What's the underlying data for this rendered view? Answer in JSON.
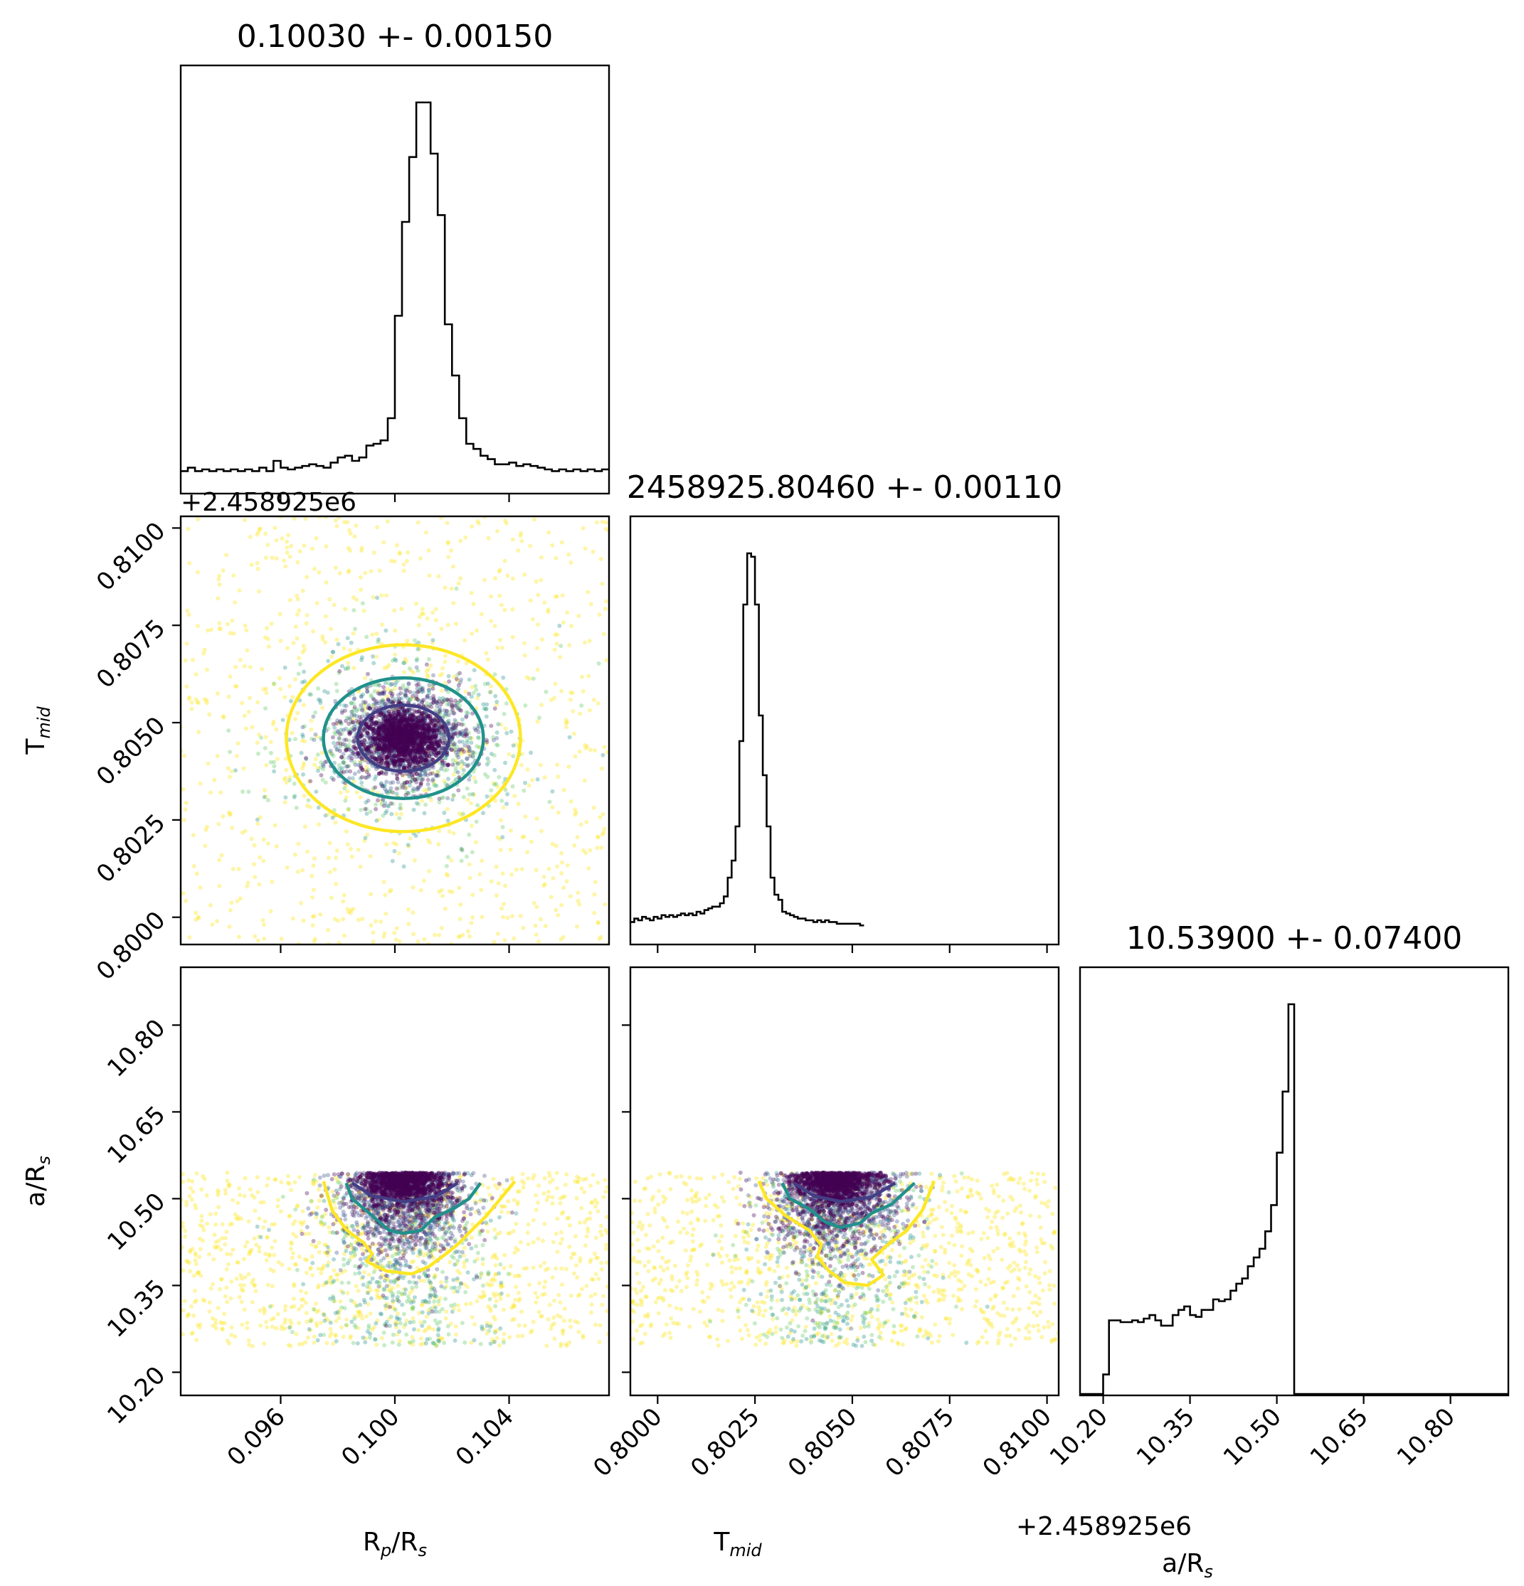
{
  "chart_data": {
    "type": "corner",
    "parameters": [
      {
        "label": "R",
        "label_sub": "p",
        "label_tail": "/R",
        "label_sub2": "s",
        "title": "0.10030 +- 0.00150"
      },
      {
        "label": "T",
        "label_sub": "mid",
        "label_tail": "",
        "label_sub2": "",
        "title": "2458925.80460 +- 0.00110"
      },
      {
        "label": "a/R",
        "label_sub": "s",
        "label_tail": "",
        "label_sub2": "",
        "title": "10.53900 +- 0.07400"
      }
    ],
    "offset_text_tmid": "+2.458925e6",
    "ranges": {
      "rp": [
        0.0925,
        0.1075
      ],
      "tmid": [
        0.7993,
        0.8103
      ],
      "ars": [
        10.16,
        10.9
      ]
    },
    "ticks": {
      "rp": [
        {
          "v": 0.096,
          "label": "0.096"
        },
        {
          "v": 0.1,
          "label": "0.100"
        },
        {
          "v": 0.104,
          "label": "0.104"
        }
      ],
      "tmid": [
        {
          "v": 0.8,
          "label": "0.8000"
        },
        {
          "v": 0.8025,
          "label": "0.8025"
        },
        {
          "v": 0.805,
          "label": "0.8050"
        },
        {
          "v": 0.8075,
          "label": "0.8075"
        },
        {
          "v": 0.81,
          "label": "0.8100"
        }
      ],
      "ars": [
        {
          "v": 10.2,
          "label": "10.20"
        },
        {
          "v": 10.35,
          "label": "10.35"
        },
        {
          "v": 10.5,
          "label": "10.50"
        },
        {
          "v": 10.65,
          "label": "10.65"
        },
        {
          "v": 10.8,
          "label": "10.80"
        }
      ]
    },
    "hist_rp": {
      "start": 0.0925,
      "width": 0.00025,
      "counts": [
        4,
        6,
        4,
        5,
        4,
        5,
        4,
        5,
        4,
        5,
        4,
        6,
        4,
        10,
        6,
        5,
        6,
        7,
        8,
        7,
        6,
        9,
        12,
        13,
        10,
        12,
        19,
        20,
        22,
        35,
        95,
        150,
        188,
        220,
        220,
        190,
        154,
        90,
        60,
        35,
        20,
        17,
        13,
        11,
        8,
        8,
        9,
        7,
        8,
        7,
        6,
        5,
        4,
        5,
        4,
        5,
        4,
        5,
        4,
        5
      ]
    },
    "hist_tmid": {
      "start": 0.7993,
      "width": 0.0001,
      "counts": [
        4,
        6,
        5,
        7,
        6,
        5,
        7,
        6,
        8,
        7,
        8,
        7,
        8,
        9,
        8,
        9,
        8,
        10,
        9,
        11,
        12,
        13,
        13,
        15,
        19,
        30,
        40,
        60,
        110,
        190,
        220,
        218,
        190,
        125,
        90,
        60,
        30,
        20,
        17,
        10,
        9,
        8,
        7,
        6,
        6,
        5,
        5,
        4,
        5,
        4,
        5,
        4,
        4,
        3,
        3,
        3,
        3,
        3,
        3,
        2
      ]
    },
    "hist_ars": {
      "start": 10.16,
      "width": 0.01,
      "counts": [
        0,
        0,
        0,
        0,
        3,
        34,
        34,
        33,
        33,
        34,
        33,
        35,
        37,
        34,
        31,
        31,
        37,
        40,
        42,
        37,
        36,
        40,
        40,
        46,
        45,
        46,
        51,
        55,
        58,
        65,
        70,
        75,
        85,
        100,
        130,
        165,
        215,
        0,
        0,
        0,
        0,
        0,
        0,
        0,
        0,
        0,
        0,
        0,
        0,
        0,
        0,
        0,
        0,
        0,
        0,
        0,
        0,
        0,
        0,
        0,
        0,
        0,
        0,
        0,
        0,
        0,
        0,
        0,
        0,
        0,
        0,
        0,
        0,
        0
      ]
    },
    "contours_2d": {
      "rp_tmid": {
        "center": [
          0.1003,
          0.8046
        ],
        "radii": [
          [
            0.0016,
            0.00085
          ],
          [
            0.0028,
            0.00155
          ],
          [
            0.0041,
            0.0024
          ]
        ]
      },
      "rp_ars": [
        [
          [
            0.0985,
            10.527
          ],
          [
            0.0992,
            10.505
          ],
          [
            0.1003,
            10.495
          ],
          [
            0.1014,
            10.503
          ],
          [
            0.1022,
            10.527
          ]
        ],
        [
          [
            0.0983,
            10.527
          ],
          [
            0.0985,
            10.5
          ],
          [
            0.0991,
            10.475
          ],
          [
            0.0998,
            10.445
          ],
          [
            0.1003,
            10.44
          ],
          [
            0.1009,
            10.445
          ],
          [
            0.1014,
            10.468
          ],
          [
            0.1021,
            10.484
          ],
          [
            0.1026,
            10.5
          ],
          [
            0.103,
            10.527
          ]
        ],
        [
          [
            0.0975,
            10.53
          ],
          [
            0.0978,
            10.48
          ],
          [
            0.0983,
            10.446
          ],
          [
            0.0989,
            10.424
          ],
          [
            0.0992,
            10.405
          ],
          [
            0.099,
            10.392
          ],
          [
            0.0997,
            10.375
          ],
          [
            0.1006,
            10.37
          ],
          [
            0.1012,
            10.383
          ],
          [
            0.1018,
            10.405
          ],
          [
            0.1022,
            10.421
          ],
          [
            0.1027,
            10.446
          ],
          [
            0.1032,
            10.47
          ],
          [
            0.1037,
            10.5
          ],
          [
            0.1042,
            10.53
          ]
        ]
      ],
      "tmid_ars": [
        [
          [
            0.8035,
            10.527
          ],
          [
            0.804,
            10.505
          ],
          [
            0.8047,
            10.495
          ],
          [
            0.8055,
            10.503
          ],
          [
            0.8061,
            10.527
          ]
        ],
        [
          [
            0.8032,
            10.527
          ],
          [
            0.8034,
            10.5
          ],
          [
            0.8039,
            10.482
          ],
          [
            0.8043,
            10.46
          ],
          [
            0.8047,
            10.45
          ],
          [
            0.8052,
            10.458
          ],
          [
            0.8055,
            10.475
          ],
          [
            0.806,
            10.49
          ],
          [
            0.8066,
            10.527
          ]
        ],
        [
          [
            0.8026,
            10.53
          ],
          [
            0.8028,
            10.5
          ],
          [
            0.8033,
            10.47
          ],
          [
            0.8039,
            10.445
          ],
          [
            0.8042,
            10.42
          ],
          [
            0.8041,
            10.4
          ],
          [
            0.8044,
            10.375
          ],
          [
            0.8048,
            10.355
          ],
          [
            0.8054,
            10.35
          ],
          [
            0.8058,
            10.368
          ],
          [
            0.8055,
            10.395
          ],
          [
            0.8059,
            10.42
          ],
          [
            0.8064,
            10.445
          ],
          [
            0.8068,
            10.48
          ],
          [
            0.8071,
            10.53
          ]
        ]
      ]
    },
    "ars_uniform_range": [
      10.245,
      10.545
    ]
  },
  "colors": {
    "level_inner": "#433e85",
    "level_middle": "#21918c",
    "level_outer": "#fde725",
    "points_dense": "#440154",
    "axis": "#000000"
  }
}
